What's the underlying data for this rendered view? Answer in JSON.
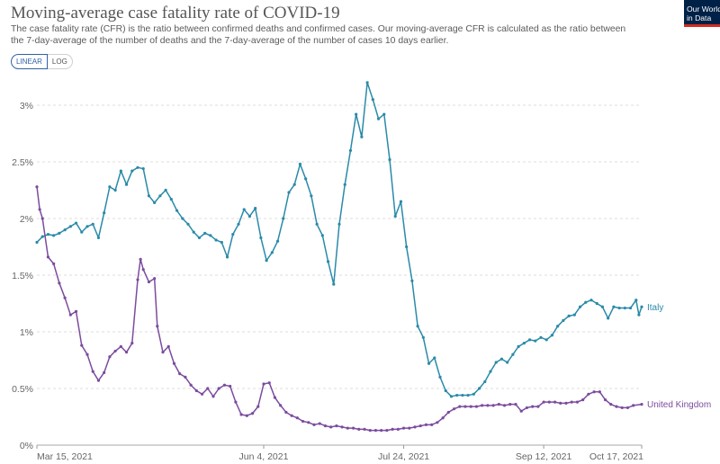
{
  "header": {
    "title": "Moving-average case fatality rate of COVID-19",
    "subtitle": "The case fatality rate (CFR) is the ratio between confirmed deaths and confirmed cases. Our moving-average CFR is calculated as the ratio between the 7-day-average of the number of deaths and the 7-day-average of the number of cases 10 days earlier.",
    "logo_line1": "Our World",
    "logo_line2": "in Data"
  },
  "controls": {
    "linear_label": "LINEAR",
    "log_label": "LOG",
    "selected": "LINEAR"
  },
  "colors": {
    "italy": "#2a8aa8",
    "uk": "#7b4c9e",
    "grid": "#dddddd",
    "brand": "#002147",
    "brand_accent": "#d42b21"
  },
  "chart_data": {
    "type": "line",
    "yscale": "linear",
    "ylim": [
      0,
      3.5
    ],
    "yticks": [
      "0%",
      "0.5%",
      "1%",
      "1.5%",
      "2%",
      "2.5%",
      "3%"
    ],
    "ytick_values": [
      0,
      0.5,
      1,
      1.5,
      2,
      2.5,
      3
    ],
    "xlim": [
      "2021-03-15",
      "2021-10-17"
    ],
    "xticks": [
      "Mar 15, 2021",
      "Jun 4, 2021",
      "Jul 24, 2021",
      "Sep 12, 2021",
      "Oct 17, 2021"
    ],
    "xtick_dates": [
      "2021-03-15",
      "2021-06-04",
      "2021-07-24",
      "2021-09-12",
      "2021-10-17"
    ],
    "grid": true,
    "legend": "inline-right",
    "series": [
      {
        "name": "Italy",
        "color": "#2a8aa8",
        "points": [
          [
            "2021-03-15",
            1.79
          ],
          [
            "2021-03-17",
            1.84
          ],
          [
            "2021-03-19",
            1.86
          ],
          [
            "2021-03-21",
            1.85
          ],
          [
            "2021-03-23",
            1.87
          ],
          [
            "2021-03-25",
            1.9
          ],
          [
            "2021-03-27",
            1.93
          ],
          [
            "2021-03-29",
            1.96
          ],
          [
            "2021-03-31",
            1.88
          ],
          [
            "2021-04-02",
            1.93
          ],
          [
            "2021-04-04",
            1.95
          ],
          [
            "2021-04-06",
            1.83
          ],
          [
            "2021-04-08",
            2.05
          ],
          [
            "2021-04-10",
            2.28
          ],
          [
            "2021-04-12",
            2.25
          ],
          [
            "2021-04-14",
            2.42
          ],
          [
            "2021-04-16",
            2.3
          ],
          [
            "2021-04-18",
            2.42
          ],
          [
            "2021-04-20",
            2.45
          ],
          [
            "2021-04-22",
            2.44
          ],
          [
            "2021-04-24",
            2.2
          ],
          [
            "2021-04-26",
            2.14
          ],
          [
            "2021-04-28",
            2.2
          ],
          [
            "2021-04-30",
            2.25
          ],
          [
            "2021-05-02",
            2.17
          ],
          [
            "2021-05-04",
            2.07
          ],
          [
            "2021-05-06",
            2.0
          ],
          [
            "2021-05-08",
            1.95
          ],
          [
            "2021-05-10",
            1.88
          ],
          [
            "2021-05-12",
            1.83
          ],
          [
            "2021-05-14",
            1.87
          ],
          [
            "2021-05-16",
            1.85
          ],
          [
            "2021-05-18",
            1.81
          ],
          [
            "2021-05-20",
            1.79
          ],
          [
            "2021-05-22",
            1.66
          ],
          [
            "2021-05-24",
            1.86
          ],
          [
            "2021-05-26",
            1.95
          ],
          [
            "2021-05-28",
            2.08
          ],
          [
            "2021-05-30",
            2.02
          ],
          [
            "2021-06-01",
            2.09
          ],
          [
            "2021-06-03",
            1.83
          ],
          [
            "2021-06-05",
            1.63
          ],
          [
            "2021-06-07",
            1.7
          ],
          [
            "2021-06-09",
            1.8
          ],
          [
            "2021-06-11",
            2.0
          ],
          [
            "2021-06-13",
            2.23
          ],
          [
            "2021-06-15",
            2.3
          ],
          [
            "2021-06-17",
            2.48
          ],
          [
            "2021-06-19",
            2.35
          ],
          [
            "2021-06-21",
            2.2
          ],
          [
            "2021-06-23",
            1.95
          ],
          [
            "2021-06-25",
            1.85
          ],
          [
            "2021-06-27",
            1.62
          ],
          [
            "2021-06-29",
            1.42
          ],
          [
            "2021-07-01",
            1.95
          ],
          [
            "2021-07-03",
            2.3
          ],
          [
            "2021-07-05",
            2.6
          ],
          [
            "2021-07-07",
            2.92
          ],
          [
            "2021-07-09",
            2.72
          ],
          [
            "2021-07-11",
            3.2
          ],
          [
            "2021-07-13",
            3.05
          ],
          [
            "2021-07-15",
            2.88
          ],
          [
            "2021-07-17",
            2.92
          ],
          [
            "2021-07-19",
            2.52
          ],
          [
            "2021-07-21",
            2.02
          ],
          [
            "2021-07-23",
            2.15
          ],
          [
            "2021-07-25",
            1.75
          ],
          [
            "2021-07-27",
            1.45
          ],
          [
            "2021-07-29",
            1.05
          ],
          [
            "2021-07-31",
            0.95
          ],
          [
            "2021-08-02",
            0.72
          ],
          [
            "2021-08-04",
            0.77
          ],
          [
            "2021-08-06",
            0.6
          ],
          [
            "2021-08-08",
            0.48
          ],
          [
            "2021-08-10",
            0.43
          ],
          [
            "2021-08-12",
            0.44
          ],
          [
            "2021-08-14",
            0.44
          ],
          [
            "2021-08-16",
            0.44
          ],
          [
            "2021-08-18",
            0.45
          ],
          [
            "2021-08-20",
            0.5
          ],
          [
            "2021-08-22",
            0.56
          ],
          [
            "2021-08-24",
            0.65
          ],
          [
            "2021-08-26",
            0.73
          ],
          [
            "2021-08-28",
            0.76
          ],
          [
            "2021-08-30",
            0.73
          ],
          [
            "2021-09-01",
            0.8
          ],
          [
            "2021-09-03",
            0.87
          ],
          [
            "2021-09-05",
            0.9
          ],
          [
            "2021-09-07",
            0.93
          ],
          [
            "2021-09-09",
            0.92
          ],
          [
            "2021-09-11",
            0.95
          ],
          [
            "2021-09-13",
            0.93
          ],
          [
            "2021-09-15",
            0.97
          ],
          [
            "2021-09-17",
            1.05
          ],
          [
            "2021-09-19",
            1.1
          ],
          [
            "2021-09-21",
            1.14
          ],
          [
            "2021-09-23",
            1.15
          ],
          [
            "2021-09-25",
            1.22
          ],
          [
            "2021-09-27",
            1.26
          ],
          [
            "2021-09-29",
            1.28
          ],
          [
            "2021-10-01",
            1.25
          ],
          [
            "2021-10-03",
            1.22
          ],
          [
            "2021-10-05",
            1.12
          ],
          [
            "2021-10-07",
            1.22
          ],
          [
            "2021-10-09",
            1.21
          ],
          [
            "2021-10-11",
            1.21
          ],
          [
            "2021-10-13",
            1.21
          ],
          [
            "2021-10-15",
            1.28
          ],
          [
            "2021-10-16",
            1.15
          ],
          [
            "2021-10-17",
            1.22
          ]
        ]
      },
      {
        "name": "United Kingdom",
        "color": "#7b4c9e",
        "points": [
          [
            "2021-03-15",
            2.28
          ],
          [
            "2021-03-16",
            2.08
          ],
          [
            "2021-03-17",
            2.0
          ],
          [
            "2021-03-19",
            1.66
          ],
          [
            "2021-03-21",
            1.6
          ],
          [
            "2021-03-23",
            1.43
          ],
          [
            "2021-03-25",
            1.3
          ],
          [
            "2021-03-27",
            1.15
          ],
          [
            "2021-03-29",
            1.18
          ],
          [
            "2021-03-31",
            0.88
          ],
          [
            "2021-04-02",
            0.8
          ],
          [
            "2021-04-04",
            0.65
          ],
          [
            "2021-04-06",
            0.57
          ],
          [
            "2021-04-08",
            0.64
          ],
          [
            "2021-04-10",
            0.78
          ],
          [
            "2021-04-12",
            0.83
          ],
          [
            "2021-04-14",
            0.87
          ],
          [
            "2021-04-16",
            0.82
          ],
          [
            "2021-04-18",
            0.9
          ],
          [
            "2021-04-20",
            1.46
          ],
          [
            "2021-04-21",
            1.64
          ],
          [
            "2021-04-22",
            1.55
          ],
          [
            "2021-04-24",
            1.44
          ],
          [
            "2021-04-26",
            1.47
          ],
          [
            "2021-04-27",
            1.05
          ],
          [
            "2021-04-29",
            0.82
          ],
          [
            "2021-05-01",
            0.87
          ],
          [
            "2021-05-03",
            0.72
          ],
          [
            "2021-05-05",
            0.63
          ],
          [
            "2021-05-07",
            0.6
          ],
          [
            "2021-05-09",
            0.53
          ],
          [
            "2021-05-11",
            0.48
          ],
          [
            "2021-05-13",
            0.45
          ],
          [
            "2021-05-15",
            0.5
          ],
          [
            "2021-05-17",
            0.43
          ],
          [
            "2021-05-19",
            0.5
          ],
          [
            "2021-05-21",
            0.53
          ],
          [
            "2021-05-23",
            0.52
          ],
          [
            "2021-05-25",
            0.38
          ],
          [
            "2021-05-27",
            0.27
          ],
          [
            "2021-05-29",
            0.26
          ],
          [
            "2021-05-31",
            0.28
          ],
          [
            "2021-06-02",
            0.34
          ],
          [
            "2021-06-04",
            0.54
          ],
          [
            "2021-06-06",
            0.55
          ],
          [
            "2021-06-08",
            0.42
          ],
          [
            "2021-06-10",
            0.35
          ],
          [
            "2021-06-12",
            0.29
          ],
          [
            "2021-06-14",
            0.26
          ],
          [
            "2021-06-16",
            0.24
          ],
          [
            "2021-06-18",
            0.21
          ],
          [
            "2021-06-20",
            0.2
          ],
          [
            "2021-06-22",
            0.18
          ],
          [
            "2021-06-24",
            0.19
          ],
          [
            "2021-06-26",
            0.17
          ],
          [
            "2021-06-28",
            0.16
          ],
          [
            "2021-06-30",
            0.17
          ],
          [
            "2021-07-02",
            0.16
          ],
          [
            "2021-07-04",
            0.15
          ],
          [
            "2021-07-06",
            0.15
          ],
          [
            "2021-07-08",
            0.14
          ],
          [
            "2021-07-10",
            0.14
          ],
          [
            "2021-07-12",
            0.13
          ],
          [
            "2021-07-14",
            0.13
          ],
          [
            "2021-07-16",
            0.13
          ],
          [
            "2021-07-18",
            0.13
          ],
          [
            "2021-07-20",
            0.14
          ],
          [
            "2021-07-22",
            0.14
          ],
          [
            "2021-07-24",
            0.15
          ],
          [
            "2021-07-26",
            0.15
          ],
          [
            "2021-07-28",
            0.16
          ],
          [
            "2021-07-30",
            0.17
          ],
          [
            "2021-08-01",
            0.18
          ],
          [
            "2021-08-03",
            0.18
          ],
          [
            "2021-08-05",
            0.2
          ],
          [
            "2021-08-07",
            0.24
          ],
          [
            "2021-08-09",
            0.29
          ],
          [
            "2021-08-11",
            0.32
          ],
          [
            "2021-08-13",
            0.34
          ],
          [
            "2021-08-15",
            0.34
          ],
          [
            "2021-08-17",
            0.34
          ],
          [
            "2021-08-19",
            0.34
          ],
          [
            "2021-08-21",
            0.35
          ],
          [
            "2021-08-23",
            0.35
          ],
          [
            "2021-08-25",
            0.35
          ],
          [
            "2021-08-27",
            0.36
          ],
          [
            "2021-08-29",
            0.35
          ],
          [
            "2021-08-31",
            0.36
          ],
          [
            "2021-09-02",
            0.36
          ],
          [
            "2021-09-04",
            0.3
          ],
          [
            "2021-09-06",
            0.33
          ],
          [
            "2021-09-08",
            0.34
          ],
          [
            "2021-09-10",
            0.34
          ],
          [
            "2021-09-12",
            0.38
          ],
          [
            "2021-09-14",
            0.38
          ],
          [
            "2021-09-16",
            0.38
          ],
          [
            "2021-09-18",
            0.37
          ],
          [
            "2021-09-20",
            0.37
          ],
          [
            "2021-09-22",
            0.38
          ],
          [
            "2021-09-24",
            0.38
          ],
          [
            "2021-09-26",
            0.4
          ],
          [
            "2021-09-28",
            0.45
          ],
          [
            "2021-09-30",
            0.47
          ],
          [
            "2021-10-02",
            0.47
          ],
          [
            "2021-10-04",
            0.4
          ],
          [
            "2021-10-06",
            0.36
          ],
          [
            "2021-10-08",
            0.34
          ],
          [
            "2021-10-10",
            0.33
          ],
          [
            "2021-10-12",
            0.33
          ],
          [
            "2021-10-14",
            0.35
          ],
          [
            "2021-10-17",
            0.36
          ]
        ]
      }
    ]
  }
}
